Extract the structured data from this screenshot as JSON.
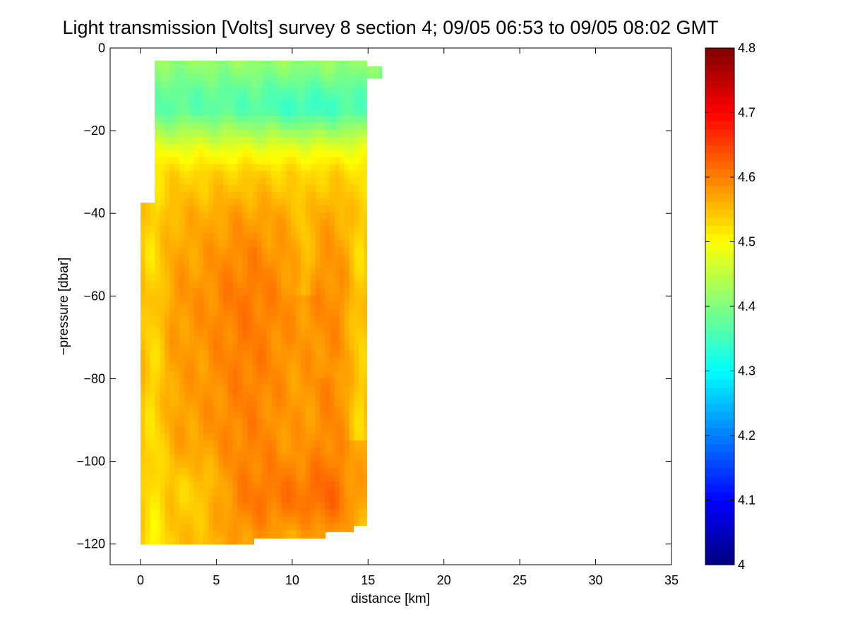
{
  "chart_data": {
    "type": "heatmap",
    "title": "Light transmission [Volts] survey 8 section 4; 09/05 06:53 to 09/05 08:02 GMT",
    "xlabel": "distance [km]",
    "ylabel": "−pressure [dbar]",
    "xlim": [
      -2,
      35
    ],
    "ylim": [
      -125,
      0
    ],
    "xticks": [
      0,
      5,
      10,
      15,
      20,
      25,
      30,
      35
    ],
    "xtick_labels": [
      "0",
      "5",
      "10",
      "15",
      "20",
      "25",
      "30",
      "35"
    ],
    "yticks": [
      0,
      -20,
      -40,
      -60,
      -80,
      -100,
      -120
    ],
    "ytick_labels": [
      "0",
      "−20",
      "−40",
      "−60",
      "−80",
      "−100",
      "−120"
    ],
    "colorbar": {
      "colormap": "jet",
      "clim": [
        4.0,
        4.8
      ],
      "ticks": [
        4.0,
        4.1,
        4.2,
        4.3,
        4.4,
        4.5,
        4.6,
        4.7,
        4.8
      ],
      "tick_labels": [
        "4",
        "4.1",
        "4.2",
        "4.3",
        "4.4",
        "4.5",
        "4.6",
        "4.7",
        "4.8"
      ]
    },
    "grid": false,
    "data_extent": {
      "x_km": [
        0,
        15
      ],
      "depth_m": [
        -120,
        -3
      ],
      "notes": "approximate field estimated from colours"
    },
    "depth_profile_mean": [
      {
        "y": -3,
        "value": 4.42
      },
      {
        "y": -10,
        "value": 4.38
      },
      {
        "y": -15,
        "value": 4.37
      },
      {
        "y": -20,
        "value": 4.43
      },
      {
        "y": -25,
        "value": 4.49
      },
      {
        "y": -30,
        "value": 4.53
      },
      {
        "y": -40,
        "value": 4.56
      },
      {
        "y": -60,
        "value": 4.58
      },
      {
        "y": -80,
        "value": 4.575
      },
      {
        "y": -100,
        "value": 4.57
      },
      {
        "y": -110,
        "value": 4.575
      },
      {
        "y": -120,
        "value": 4.55
      }
    ]
  }
}
